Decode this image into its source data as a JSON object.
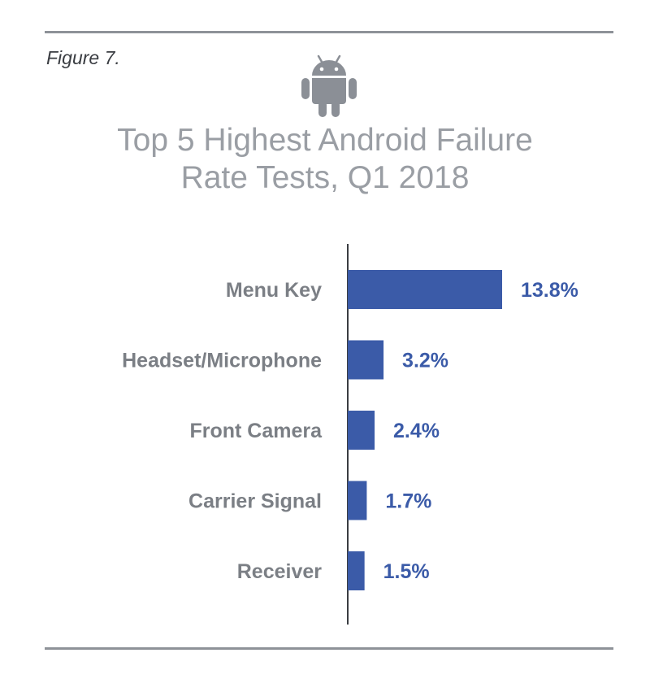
{
  "figure_label": "Figure 7.",
  "icons": {
    "header": "android-robot-icon"
  },
  "colors": {
    "bar": "#3b5ba8",
    "value_text": "#3b5ba8",
    "category_text": "#7b7f85",
    "title_text": "#9a9ea4",
    "rules": "#8e9298"
  },
  "chart_data": {
    "type": "bar",
    "orientation": "horizontal",
    "title_lines": [
      "Top 5 Highest Android Failure",
      "Rate Tests, Q1 2018"
    ],
    "categories": [
      "Menu Key",
      "Headset/Microphone",
      "Front Camera",
      "Carrier Signal",
      "Receiver"
    ],
    "values": [
      13.8,
      3.2,
      2.4,
      1.7,
      1.5
    ],
    "value_labels": [
      "13.8%",
      "3.2%",
      "2.4%",
      "1.7%",
      "1.5%"
    ],
    "unit": "%",
    "xlim": [
      0,
      13.8
    ],
    "grid": false,
    "legend": "none"
  }
}
